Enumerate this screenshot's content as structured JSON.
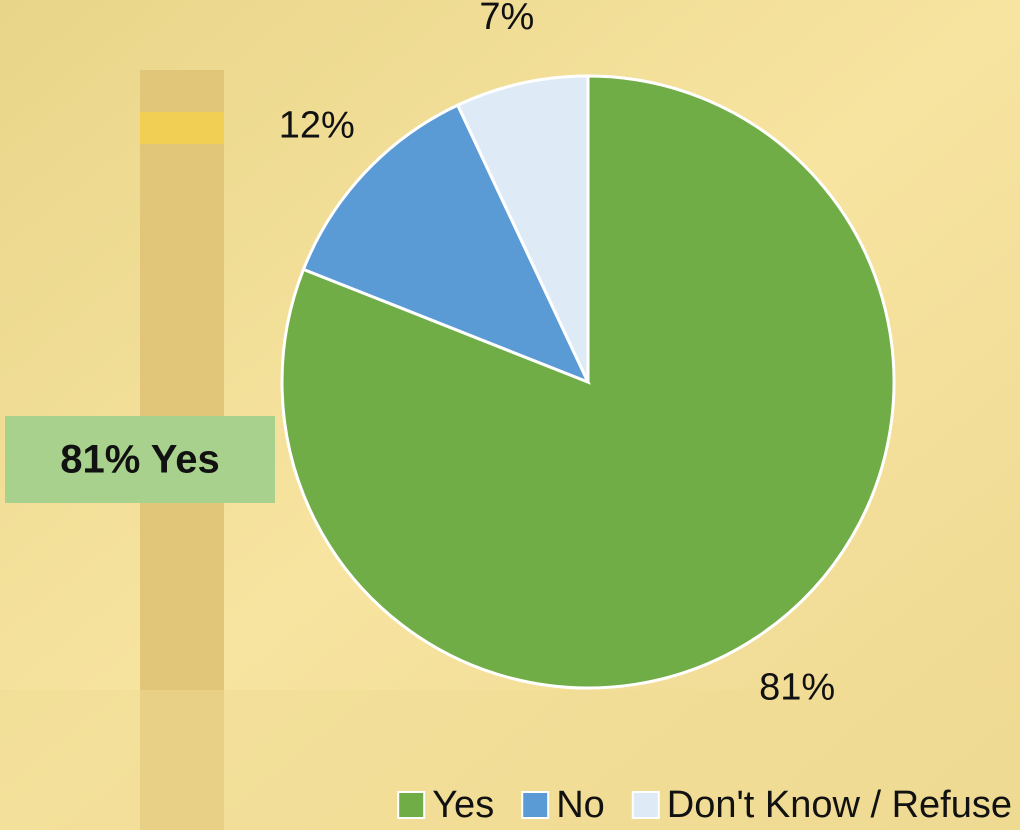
{
  "chart_data": {
    "type": "pie",
    "categories": [
      "Yes",
      "No",
      "Don't Know / Refuse"
    ],
    "values": [
      81,
      12,
      7
    ],
    "value_labels": [
      "81%",
      "12%",
      "7%"
    ],
    "colors": [
      "#70ad47",
      "#5b9bd5",
      "#deebf7"
    ],
    "callout": "81% Yes",
    "legend": "bottom"
  }
}
